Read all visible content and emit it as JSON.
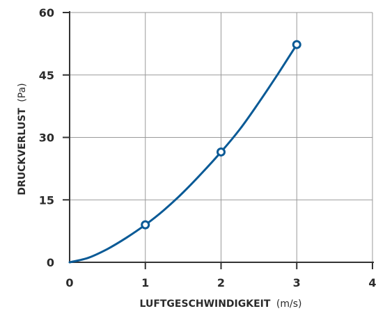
{
  "chart_data": {
    "type": "line",
    "title": "",
    "xlabel": "LUFTGESCHWINDIGKEIT",
    "xlabel_unit": "(m/s)",
    "ylabel": "DRUCKVERLUST",
    "ylabel_unit": "(Pa)",
    "xlim": [
      0,
      4
    ],
    "ylim": [
      0,
      60
    ],
    "x_ticks": [
      0,
      1,
      2,
      3,
      4
    ],
    "y_ticks": [
      0,
      15,
      30,
      45,
      60
    ],
    "x_tick_labels": [
      "0",
      "1",
      "2",
      "3",
      "4"
    ],
    "y_tick_labels": [
      "0",
      "15",
      "30",
      "45",
      "60"
    ],
    "grid": true,
    "line_color": "#0a5a96",
    "axis_color": "#333333",
    "grid_color": "#999999",
    "series": [
      {
        "curve": {
          "x": [
            0,
            0.25,
            0.5,
            0.75,
            1,
            1.25,
            1.5,
            1.75,
            2,
            2.25,
            2.5,
            2.75,
            3
          ],
          "y": [
            0,
            1.1,
            3.2,
            5.9,
            9.0,
            12.6,
            16.8,
            21.5,
            26.5,
            32.0,
            38.4,
            45.2,
            52.3
          ]
        },
        "markers": {
          "x": [
            1,
            2,
            3
          ],
          "y": [
            9.0,
            26.5,
            52.3
          ]
        }
      }
    ]
  }
}
